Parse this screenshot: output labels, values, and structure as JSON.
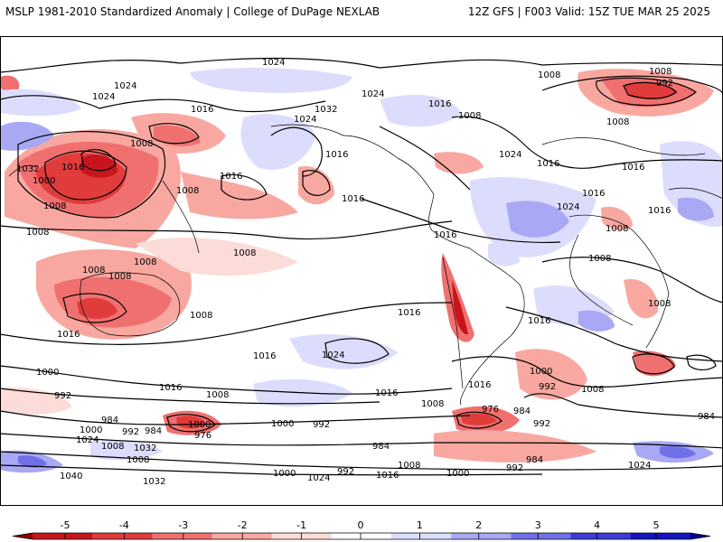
{
  "header": {
    "title_left": "MSLP 1981-2010 Standardized Anomaly | College of DuPage NEXLAB",
    "title_right": "12Z GFS | F003 Valid: 15Z TUE MAR 25 2025"
  },
  "colorbar": {
    "ticks": [
      "-5",
      "-4",
      "-3",
      "-2",
      "-1",
      "0",
      "1",
      "2",
      "3",
      "4",
      "5"
    ],
    "colors": [
      "#8b0000",
      "#c8141c",
      "#e03c3c",
      "#f07070",
      "#f8a8a0",
      "#fcdcd8",
      "#ffffff",
      "#dcdcfc",
      "#a8a8f4",
      "#7070e8",
      "#3c3cd8",
      "#1414c0",
      "#00008b"
    ]
  },
  "isobar_labels": [
    {
      "text": "1024",
      "key": "a"
    },
    {
      "text": "1024",
      "key": "b"
    },
    {
      "text": "1024",
      "key": "c"
    },
    {
      "text": "1024",
      "key": "d"
    },
    {
      "text": "1024",
      "key": "e"
    },
    {
      "text": "1024",
      "key": "f"
    },
    {
      "text": "1024",
      "key": "g"
    },
    {
      "text": "1024",
      "key": "h"
    },
    {
      "text": "1024",
      "key": "i"
    },
    {
      "text": "1024",
      "key": "j"
    },
    {
      "text": "1024",
      "key": "k"
    },
    {
      "text": "1032",
      "key": "l"
    },
    {
      "text": "1032",
      "key": "m"
    },
    {
      "text": "1032",
      "key": "n"
    },
    {
      "text": "1032",
      "key": "o"
    },
    {
      "text": "1016",
      "key": "p"
    },
    {
      "text": "1016",
      "key": "q"
    },
    {
      "text": "1016",
      "key": "r"
    },
    {
      "text": "1016",
      "key": "s"
    },
    {
      "text": "1016",
      "key": "t"
    },
    {
      "text": "1016",
      "key": "u"
    },
    {
      "text": "1016",
      "key": "v"
    },
    {
      "text": "1016",
      "key": "w"
    },
    {
      "text": "1016",
      "key": "x"
    },
    {
      "text": "1016",
      "key": "y"
    },
    {
      "text": "1016",
      "key": "z"
    },
    {
      "text": "1016",
      "key": "aa"
    },
    {
      "text": "1016",
      "key": "ab"
    },
    {
      "text": "1016",
      "key": "ac"
    },
    {
      "text": "1016",
      "key": "ad"
    },
    {
      "text": "1016",
      "key": "ae"
    },
    {
      "text": "1016",
      "key": "af"
    },
    {
      "text": "1016",
      "key": "ag"
    },
    {
      "text": "1016",
      "key": "ah"
    },
    {
      "text": "1008",
      "key": "ai"
    },
    {
      "text": "1008",
      "key": "aj"
    },
    {
      "text": "1008",
      "key": "ak"
    },
    {
      "text": "1008",
      "key": "al"
    },
    {
      "text": "1008",
      "key": "am"
    },
    {
      "text": "1008",
      "key": "an"
    },
    {
      "text": "1008",
      "key": "ao"
    },
    {
      "text": "1008",
      "key": "ap"
    },
    {
      "text": "1008",
      "key": "aq"
    },
    {
      "text": "1008",
      "key": "ar"
    },
    {
      "text": "1008",
      "key": "as"
    },
    {
      "text": "1008",
      "key": "at"
    },
    {
      "text": "1008",
      "key": "au"
    },
    {
      "text": "1008",
      "key": "av"
    },
    {
      "text": "1008",
      "key": "aw"
    },
    {
      "text": "1008",
      "key": "ax"
    },
    {
      "text": "1008",
      "key": "ay"
    },
    {
      "text": "1008",
      "key": "az"
    },
    {
      "text": "1008",
      "key": "ba"
    },
    {
      "text": "1008",
      "key": "bb"
    },
    {
      "text": "1008",
      "key": "bc"
    },
    {
      "text": "1008",
      "key": "bd"
    },
    {
      "text": "1000",
      "key": "be"
    },
    {
      "text": "1000",
      "key": "bf"
    },
    {
      "text": "1000",
      "key": "bg"
    },
    {
      "text": "1000",
      "key": "bh"
    },
    {
      "text": "1000",
      "key": "bi"
    },
    {
      "text": "1000",
      "key": "bj"
    },
    {
      "text": "1000",
      "key": "bk"
    },
    {
      "text": "1000",
      "key": "bl"
    },
    {
      "text": "992",
      "key": "bm"
    },
    {
      "text": "992",
      "key": "bn"
    },
    {
      "text": "992",
      "key": "bo"
    },
    {
      "text": "992",
      "key": "bp"
    },
    {
      "text": "992",
      "key": "bq"
    },
    {
      "text": "992",
      "key": "br"
    },
    {
      "text": "992",
      "key": "bs"
    },
    {
      "text": "992",
      "key": "bt"
    },
    {
      "text": "984",
      "key": "bu"
    },
    {
      "text": "984",
      "key": "bv"
    },
    {
      "text": "984",
      "key": "bw"
    },
    {
      "text": "984",
      "key": "bx"
    },
    {
      "text": "984",
      "key": "by"
    },
    {
      "text": "984",
      "key": "bz"
    },
    {
      "text": "976",
      "key": "ca"
    },
    {
      "text": "976",
      "key": "cb"
    },
    {
      "text": "1040",
      "key": "cc"
    }
  ]
}
